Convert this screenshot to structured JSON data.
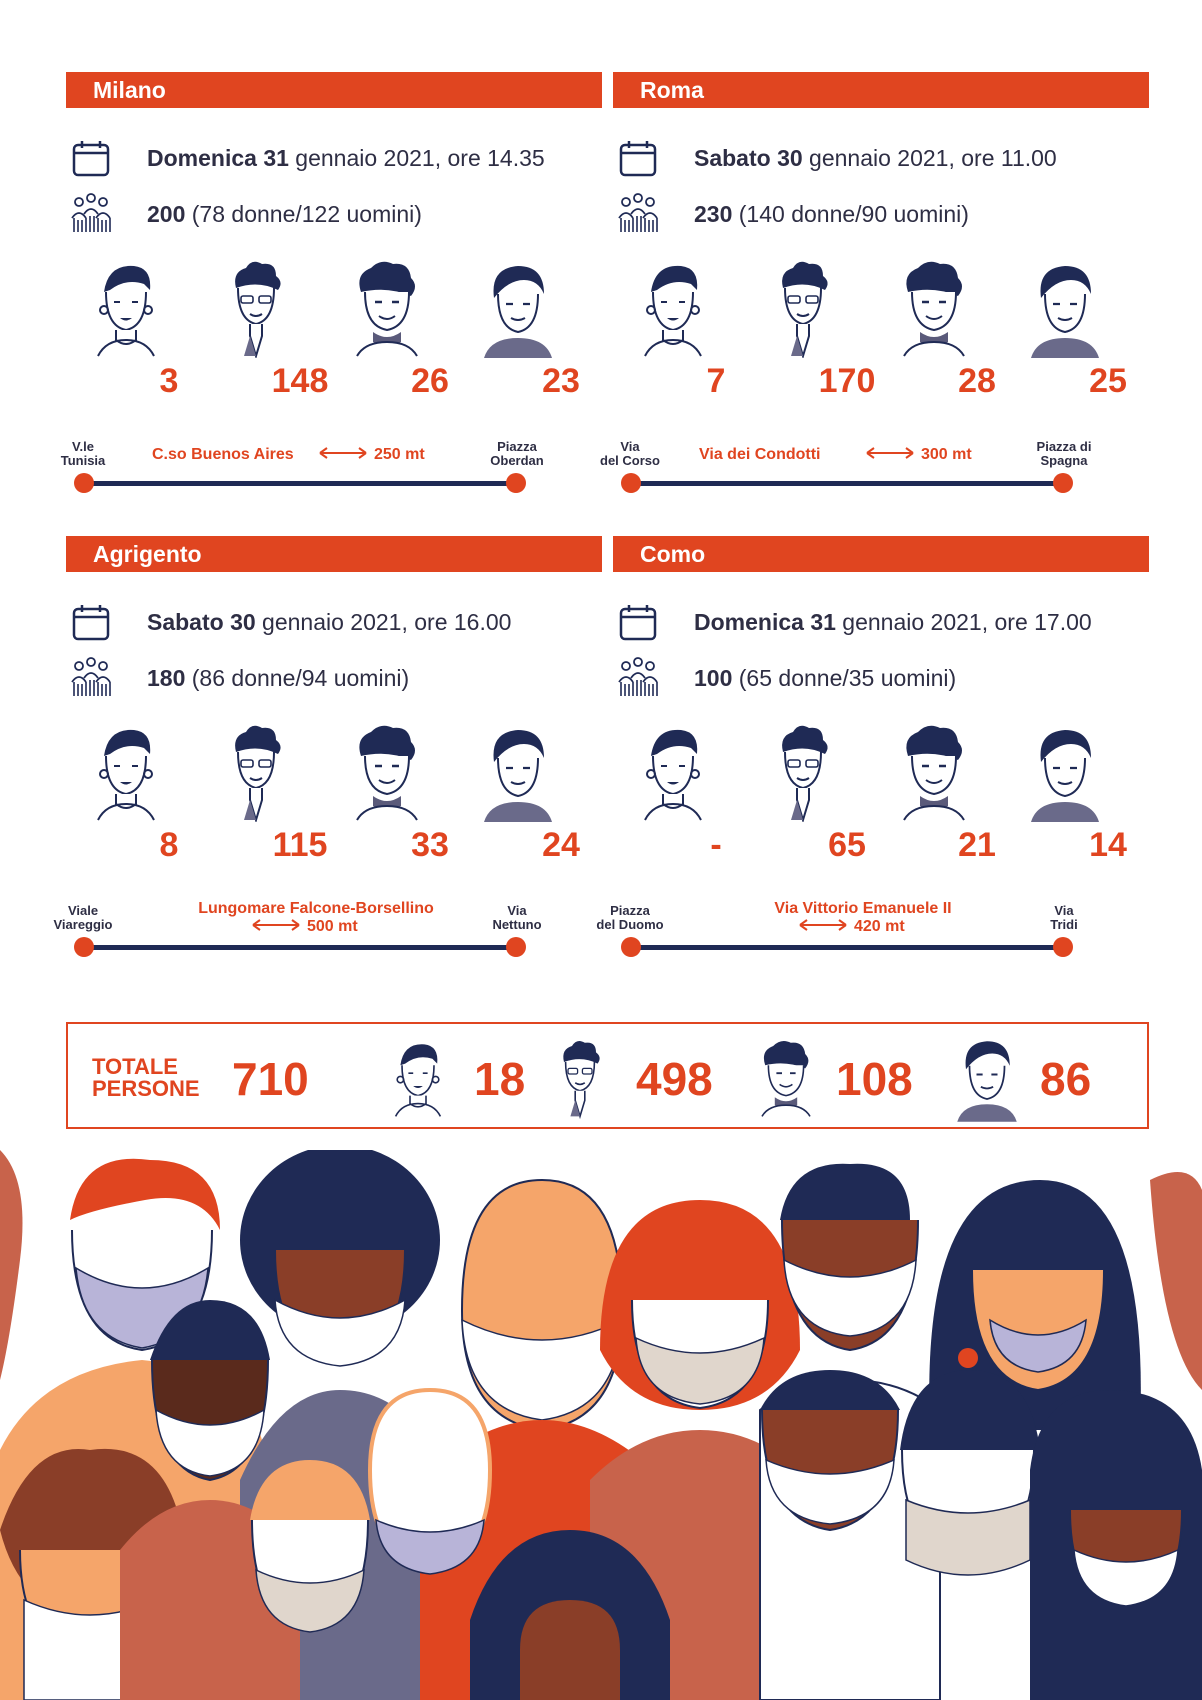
{
  "panels": [
    {
      "city": "Milano",
      "date_bold": "Domenica 31",
      "date_rest": " gennaio 2021, ore 14.35",
      "people_bold": "200",
      "people_rest": " (78 donne/122 uomini)",
      "counts": [
        "3",
        "148",
        "26",
        "23"
      ],
      "route": {
        "start": "V.le\nTunisia",
        "street": "C.so Buenos Aires",
        "distance": "250 mt",
        "end": "Piazza\nOberdan"
      }
    },
    {
      "city": "Roma",
      "date_bold": "Sabato 30",
      "date_rest": " gennaio 2021, ore 11.00",
      "people_bold": "230",
      "people_rest": " (140 donne/90 uomini)",
      "counts": [
        "7",
        "170",
        "28",
        "25"
      ],
      "route": {
        "start": "Via\ndel Corso",
        "street": "Via dei Condotti",
        "distance": "300 mt",
        "end": "Piazza di\nSpagna"
      }
    },
    {
      "city": "Agrigento",
      "date_bold": "Sabato 30",
      "date_rest": " gennaio 2021, ore 16.00",
      "people_bold": "180",
      "people_rest": " (86 donne/94 uomini)",
      "counts": [
        "8",
        "115",
        "33",
        "24"
      ],
      "route": {
        "start": "Viale\nViareggio",
        "street": "Lungomare Falcone-Borsellino",
        "distance": "500 mt",
        "end": "Via\nNettuno"
      }
    },
    {
      "city": "Como",
      "date_bold": "Domenica 31",
      "date_rest": " gennaio 2021, ore 17.00",
      "people_bold": "100",
      "people_rest": " (65 donne/35 uomini)",
      "counts": [
        "-",
        "65",
        "21",
        "14"
      ],
      "route": {
        "start": "Piazza\ndel Duomo",
        "street": "Via Vittorio Emanuele II",
        "distance": "420 mt",
        "end": "Via\nTridi"
      }
    }
  ],
  "total": {
    "label_line1": "TOTALE",
    "label_line2": "PERSONE",
    "people": "710",
    "counts": [
      "18",
      "498",
      "108",
      "86"
    ]
  },
  "icons": {
    "calendar": "calendar-icon",
    "people": "people-group-icon",
    "faces": [
      "face-earrings-icon",
      "face-curly-hair-icon",
      "face-wavy-hair-icon",
      "face-side-part-icon"
    ]
  },
  "colors": {
    "accent": "#e04520",
    "navy": "#1f2a55",
    "peach": "#f5a56a"
  }
}
